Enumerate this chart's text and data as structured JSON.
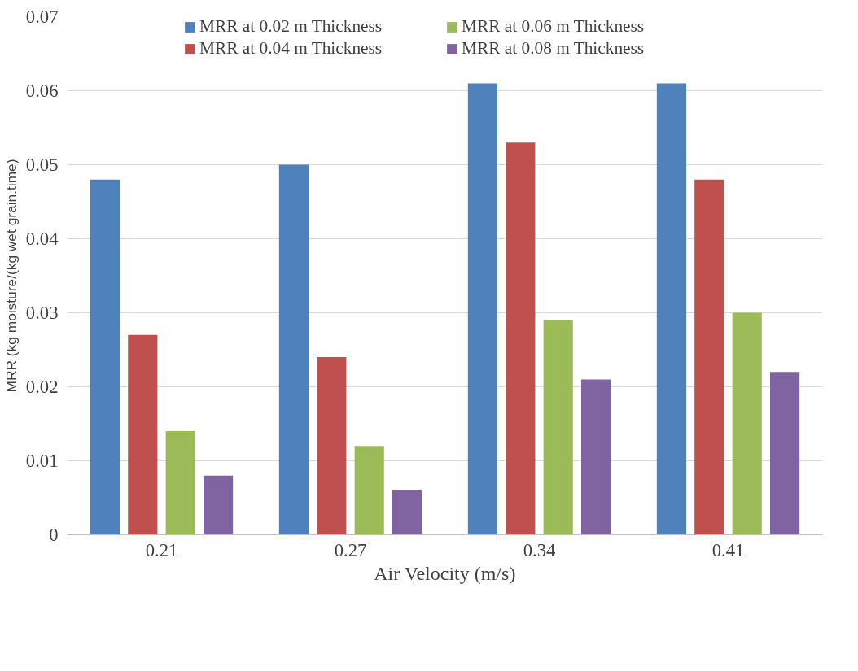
{
  "chart_data": {
    "type": "bar",
    "xlabel": "Air Velocity (m/s)",
    "ylabel": "MRR (kg moisture/(kg wet grain.time)",
    "categories": [
      "0.21",
      "0.27",
      "0.34",
      "0.41"
    ],
    "series": [
      {
        "name": "MRR at 0.02 m Thickness",
        "color": "#4f81bd",
        "values": [
          0.048,
          0.05,
          0.061,
          0.061
        ]
      },
      {
        "name": "MRR at 0.04 m Thickness",
        "color": "#c0504d",
        "values": [
          0.027,
          0.024,
          0.053,
          0.048
        ]
      },
      {
        "name": "MRR at 0.06 m Thickness",
        "color": "#9bbb59",
        "values": [
          0.014,
          0.012,
          0.029,
          0.03
        ]
      },
      {
        "name": "MRR at 0.08 m Thickness",
        "color": "#8064a2",
        "values": [
          0.008,
          0.006,
          0.021,
          0.022
        ]
      }
    ],
    "ylim": [
      0,
      0.07
    ],
    "yticks": [
      0,
      0.01,
      0.02,
      0.03,
      0.04,
      0.05,
      0.06,
      0.07
    ],
    "grid": "y",
    "legend": "top"
  }
}
